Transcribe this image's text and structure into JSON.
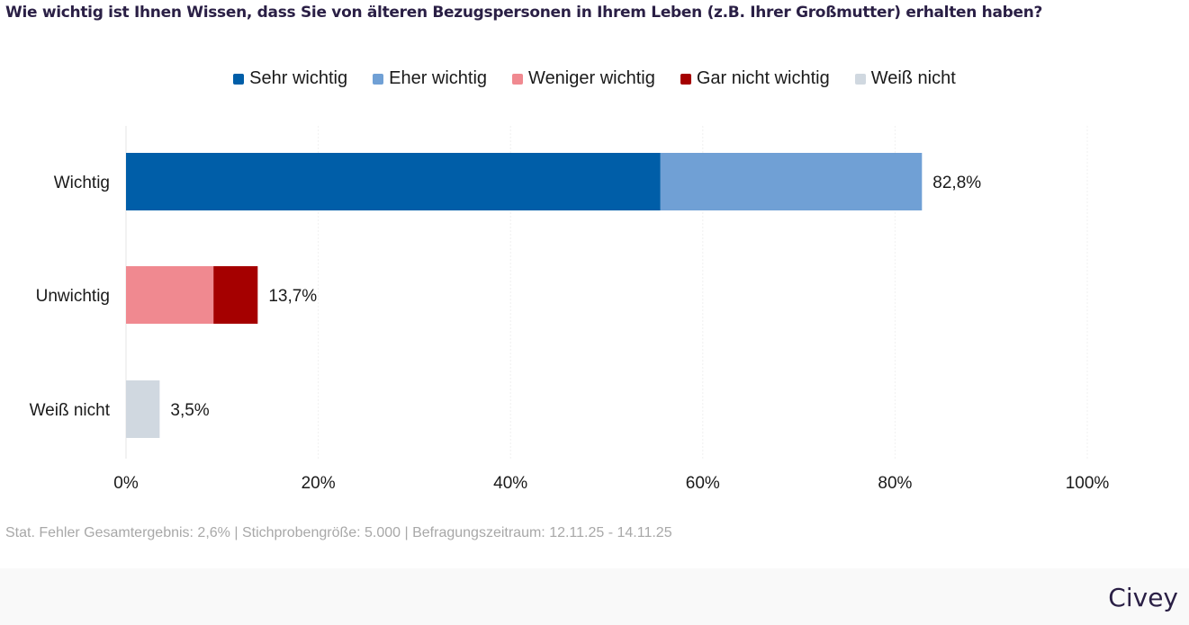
{
  "header": {
    "title": "Wie wichtig ist Ihnen Wissen, dass Sie von älteren Bezugspersonen in Ihrem Leben (z.B. Ihrer Großmutter) erhalten haben?"
  },
  "footer": {
    "note": "Stat. Fehler Gesamtergebnis: 2,6% | Stichprobengröße: 5.000 | Befragungszeitraum: 12.11.25 - 14.11.25",
    "brand": "Civey"
  },
  "chart_data": {
    "type": "bar",
    "orientation": "horizontal",
    "stacked": true,
    "title": "Wie wichtig ist Ihnen Wissen, dass Sie von älteren Bezugspersonen in Ihrem Leben (z.B. Ihrer Großmutter) erhalten haben?",
    "categories": [
      "Wichtig",
      "Unwichtig",
      "Weiß nicht"
    ],
    "series": [
      {
        "name": "Sehr wichtig",
        "color": "#005ea8",
        "values": [
          55.6,
          0,
          0
        ]
      },
      {
        "name": "Eher wichtig",
        "color": "#70a0d5",
        "values": [
          27.2,
          0,
          0
        ]
      },
      {
        "name": "Weniger wichtig",
        "color": "#f08990",
        "values": [
          0,
          9.1,
          0
        ]
      },
      {
        "name": "Gar nicht wichtig",
        "color": "#a50000",
        "values": [
          0,
          4.6,
          0
        ]
      },
      {
        "name": "Weiß nicht",
        "color": "#d0d8e0",
        "values": [
          0,
          0,
          3.5
        ]
      }
    ],
    "totals": [
      82.8,
      13.7,
      3.5
    ],
    "total_labels": [
      "82,8%",
      "13,7%",
      "3,5%"
    ],
    "xlim": [
      0,
      100
    ],
    "xticks": [
      0,
      20,
      40,
      60,
      80,
      100
    ],
    "xtick_labels": [
      "0%",
      "20%",
      "40%",
      "60%",
      "80%",
      "100%"
    ],
    "xlabel": "",
    "ylabel": "",
    "grid": true,
    "legend_position": "top-center"
  }
}
